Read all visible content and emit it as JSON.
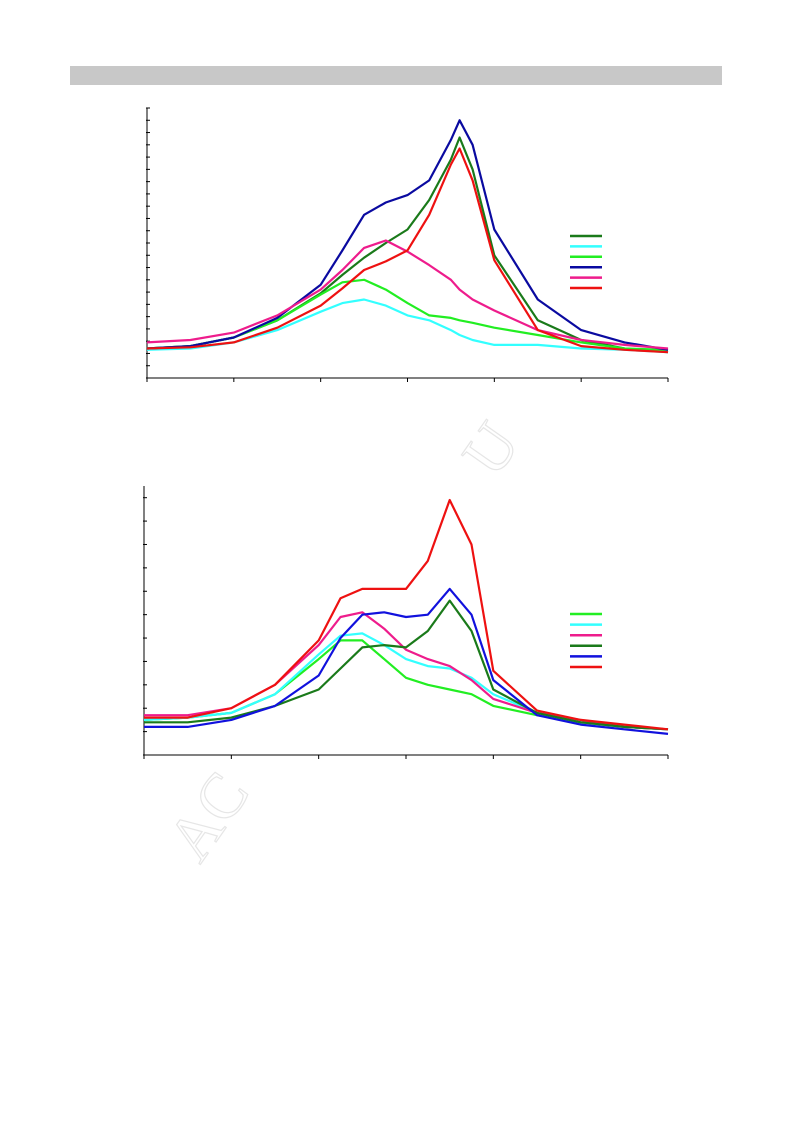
{
  "watermark": [
    "AC",
    "U"
  ],
  "chart_data": [
    {
      "type": "line",
      "x": [
        0,
        0.5,
        1,
        1.5,
        2,
        2.25,
        2.5,
        2.75,
        3,
        3.25,
        3.5,
        3.6,
        3.75,
        4,
        4.5,
        5,
        5.5,
        6
      ],
      "xlim": [
        0,
        6
      ],
      "xticks": [
        0,
        1,
        2,
        3,
        4,
        5,
        6
      ],
      "ylim": [
        0,
        22
      ],
      "yticks": [
        0,
        1,
        2,
        3,
        4,
        5,
        6,
        7,
        8,
        9,
        10,
        11,
        12,
        13,
        14,
        15,
        16,
        17,
        18,
        19,
        20,
        21,
        22
      ],
      "series": [
        {
          "color": "#1a7a1a",
          "values": [
            2.4,
            2.6,
            3.3,
            4.7,
            6.9,
            8.4,
            9.8,
            11.0,
            12.1,
            14.5,
            17.8,
            19.6,
            17.0,
            10.0,
            4.7,
            3.1,
            2.4,
            2.1
          ]
        },
        {
          "color": "#33ffff",
          "values": [
            2.3,
            2.4,
            2.9,
            3.9,
            5.4,
            6.1,
            6.4,
            5.9,
            5.1,
            4.7,
            3.9,
            3.5,
            3.1,
            2.7,
            2.7,
            2.4,
            2.3,
            2.1
          ]
        },
        {
          "color": "#22ee22",
          "values": [
            2.4,
            2.6,
            3.3,
            4.7,
            6.8,
            7.8,
            8.0,
            7.2,
            6.1,
            5.1,
            4.9,
            4.7,
            4.5,
            4.1,
            3.5,
            2.9,
            2.4,
            2.3
          ]
        },
        {
          "color": "#0a0aa0",
          "values": [
            2.4,
            2.6,
            3.3,
            4.9,
            7.6,
            10.4,
            13.3,
            14.3,
            14.9,
            16.1,
            19.4,
            21.0,
            19.0,
            12.1,
            6.4,
            3.9,
            2.9,
            2.3
          ]
        },
        {
          "color": "#ee1c8c",
          "values": [
            2.9,
            3.1,
            3.7,
            5.1,
            7.2,
            8.8,
            10.6,
            11.2,
            10.3,
            9.2,
            8.0,
            7.2,
            6.4,
            5.5,
            3.9,
            3.1,
            2.7,
            2.4
          ]
        },
        {
          "color": "#ee1111",
          "values": [
            2.4,
            2.5,
            2.9,
            4.1,
            5.9,
            7.3,
            8.8,
            9.5,
            10.4,
            13.3,
            17.4,
            18.7,
            16.1,
            9.6,
            3.9,
            2.6,
            2.3,
            2.1
          ]
        }
      ]
    },
    {
      "type": "line",
      "x": [
        0,
        0.5,
        1,
        1.5,
        2,
        2.25,
        2.5,
        2.75,
        3,
        3.25,
        3.5,
        3.75,
        4,
        4.5,
        5,
        5.5,
        6
      ],
      "xlim": [
        0,
        6
      ],
      "xticks": [
        0,
        1,
        2,
        3,
        4,
        5,
        6
      ],
      "ylim": [
        0,
        11.5
      ],
      "yticks": [
        0,
        1,
        2,
        3,
        4,
        5,
        6,
        7,
        8,
        9,
        10,
        11
      ],
      "series": [
        {
          "color": "#22ee22",
          "values": [
            1.5,
            1.6,
            1.8,
            2.6,
            4.1,
            4.9,
            4.9,
            4.1,
            3.3,
            3.0,
            2.8,
            2.6,
            2.1,
            1.7,
            1.4,
            1.2,
            1.1
          ]
        },
        {
          "color": "#33ffff",
          "values": [
            1.5,
            1.6,
            1.8,
            2.6,
            4.3,
            5.1,
            5.2,
            4.7,
            4.1,
            3.8,
            3.7,
            3.3,
            2.6,
            1.8,
            1.4,
            1.2,
            1.1
          ]
        },
        {
          "color": "#ee1c8c",
          "values": [
            1.7,
            1.7,
            2.0,
            3.0,
            4.7,
            5.9,
            6.1,
            5.4,
            4.5,
            4.1,
            3.8,
            3.2,
            2.4,
            1.8,
            1.5,
            1.2,
            1.1
          ]
        },
        {
          "color": "#1a7a1a",
          "values": [
            1.4,
            1.4,
            1.6,
            2.1,
            2.8,
            3.7,
            4.6,
            4.7,
            4.6,
            5.3,
            6.6,
            5.3,
            2.8,
            1.8,
            1.4,
            1.2,
            1.1
          ]
        },
        {
          "color": "#1111dd",
          "values": [
            1.2,
            1.2,
            1.5,
            2.1,
            3.4,
            5.0,
            6.0,
            6.1,
            5.9,
            6.0,
            7.1,
            6.0,
            3.2,
            1.7,
            1.3,
            1.1,
            0.9
          ]
        },
        {
          "color": "#ee1111",
          "values": [
            1.6,
            1.6,
            2.0,
            3.0,
            4.9,
            6.7,
            7.1,
            7.1,
            7.1,
            8.3,
            10.9,
            9.0,
            3.6,
            1.9,
            1.5,
            1.3,
            1.1
          ]
        }
      ]
    }
  ]
}
